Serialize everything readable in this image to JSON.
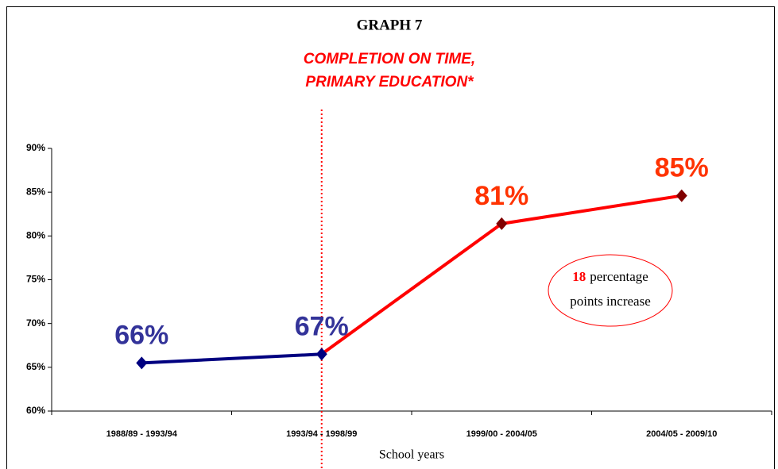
{
  "chart_data": {
    "type": "line",
    "title": "GRAPH 7",
    "subtitle": [
      "COMPLETION ON TIME,",
      "PRIMARY EDUCATION*"
    ],
    "xlabel": "School years",
    "categories": [
      "1988/89 - 1993/94",
      "1993/94 - 1998/99",
      "1999/00 - 2004/05",
      "2004/05 - 2009/10"
    ],
    "values": [
      65.5,
      66.5,
      81.4,
      84.6
    ],
    "value_labels": [
      "66%",
      "67%",
      "81%",
      "85%"
    ],
    "segment_colors": [
      "#000080",
      "#ff0000",
      "#ff0000"
    ],
    "marker_colors": [
      "#000080",
      "#000080",
      "#800000",
      "#800000"
    ],
    "label_colors": [
      "#333399",
      "#333399",
      "#ff3300",
      "#ff3300"
    ],
    "ylim": [
      60,
      90
    ],
    "yticks": [
      {
        "value": 60,
        "label": "60%"
      },
      {
        "value": 65,
        "label": "65%"
      },
      {
        "value": 70,
        "label": "70%"
      },
      {
        "value": 75,
        "label": "75%"
      },
      {
        "value": 80,
        "label": "80%"
      },
      {
        "value": 85,
        "label": "85%"
      },
      {
        "value": 90,
        "label": "90%"
      }
    ],
    "grid": false,
    "vline_category": 1,
    "vline_color": "#ff0000",
    "annotation": {
      "number": 18,
      "lines": [
        "percentage",
        "points increase"
      ]
    }
  }
}
